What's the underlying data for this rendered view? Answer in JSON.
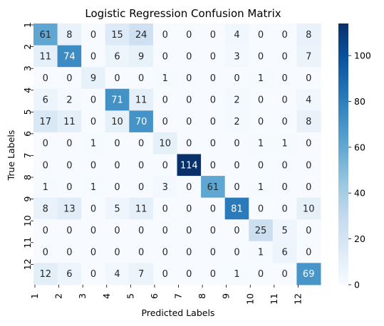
{
  "chart_data": {
    "type": "heatmap",
    "title": "Logistic Regression Confusion Matrix",
    "xlabel": "Predicted Labels",
    "ylabel": "True Labels",
    "x_tick_labels": [
      "1",
      "2",
      "3",
      "4",
      "5",
      "6",
      "7",
      "8",
      "9",
      "10",
      "11",
      "12"
    ],
    "y_tick_labels": [
      "1",
      "2",
      "3",
      "4",
      "5",
      "6",
      "7",
      "8",
      "9",
      "10",
      "11",
      "12"
    ],
    "matrix": [
      [
        61,
        8,
        0,
        15,
        24,
        0,
        0,
        0,
        4,
        0,
        0,
        8
      ],
      [
        11,
        74,
        0,
        6,
        9,
        0,
        0,
        0,
        3,
        0,
        0,
        7
      ],
      [
        0,
        0,
        9,
        0,
        0,
        1,
        0,
        0,
        0,
        1,
        0,
        0
      ],
      [
        6,
        2,
        0,
        71,
        11,
        0,
        0,
        0,
        2,
        0,
        0,
        4
      ],
      [
        17,
        11,
        0,
        10,
        70,
        0,
        0,
        0,
        2,
        0,
        0,
        8
      ],
      [
        0,
        0,
        1,
        0,
        0,
        10,
        0,
        0,
        0,
        1,
        1,
        0
      ],
      [
        0,
        0,
        0,
        0,
        0,
        0,
        114,
        0,
        0,
        0,
        0,
        0
      ],
      [
        1,
        0,
        1,
        0,
        0,
        3,
        0,
        61,
        0,
        1,
        0,
        0
      ],
      [
        8,
        13,
        0,
        5,
        11,
        0,
        0,
        0,
        81,
        0,
        0,
        10
      ],
      [
        0,
        0,
        0,
        0,
        0,
        0,
        0,
        0,
        0,
        25,
        5,
        0
      ],
      [
        0,
        0,
        0,
        0,
        0,
        0,
        0,
        0,
        0,
        1,
        6,
        0
      ],
      [
        12,
        6,
        0,
        4,
        7,
        0,
        0,
        0,
        1,
        0,
        0,
        69
      ]
    ],
    "colormap": "Blues",
    "colorbar": {
      "range": [
        0,
        114
      ],
      "ticks": [
        0,
        20,
        40,
        60,
        80,
        100
      ]
    },
    "grid": false
  }
}
